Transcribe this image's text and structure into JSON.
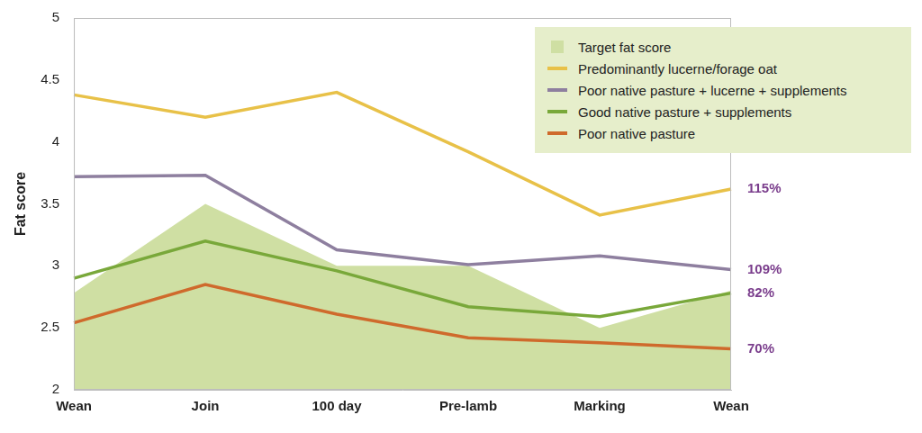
{
  "chart_data": {
    "type": "line",
    "y_label": "Fat score",
    "categories": [
      "Wean",
      "Join",
      "100 day",
      "Pre-lamb",
      "Marking",
      "Wean"
    ],
    "ylim": [
      2,
      5
    ],
    "yticks": [
      2,
      2.5,
      3,
      3.5,
      4,
      4.5,
      5
    ],
    "grid": false,
    "legend": "top right",
    "series": [
      {
        "name": "Target fat score",
        "type": "area",
        "marker": "square",
        "color": "#cfdfa3",
        "values": [
          2.78,
          3.5,
          3.0,
          3.0,
          2.5,
          2.8
        ]
      },
      {
        "name": "Predominantly lucerne/forage oat",
        "color": "#e8c148",
        "values": [
          4.38,
          4.2,
          4.4,
          3.92,
          3.41,
          3.62
        ]
      },
      {
        "name": "Poor native pasture + lucerne + supplements",
        "color": "#8e7f9f",
        "values": [
          3.72,
          3.73,
          3.13,
          3.01,
          3.08,
          2.97
        ]
      },
      {
        "name": "Good native pasture + supplements",
        "color": "#79a83a",
        "values": [
          2.9,
          3.2,
          2.96,
          2.67,
          2.59,
          2.78
        ]
      },
      {
        "name": "Poor native pasture",
        "color": "#cf6a2c",
        "values": [
          2.54,
          2.85,
          2.61,
          2.42,
          2.38,
          2.33
        ]
      }
    ],
    "annotations": [
      {
        "series": "Predominantly lucerne/forage oat",
        "text": "115%",
        "color": "#7a3d8c"
      },
      {
        "series": "Poor native pasture + lucerne + supplements",
        "text": "109%",
        "color": "#7a3d8c"
      },
      {
        "series": "Good native pasture + supplements",
        "text": "82%",
        "color": "#7a3d8c"
      },
      {
        "series": "Poor native pasture",
        "text": "70%",
        "color": "#7a3d8c"
      }
    ]
  }
}
